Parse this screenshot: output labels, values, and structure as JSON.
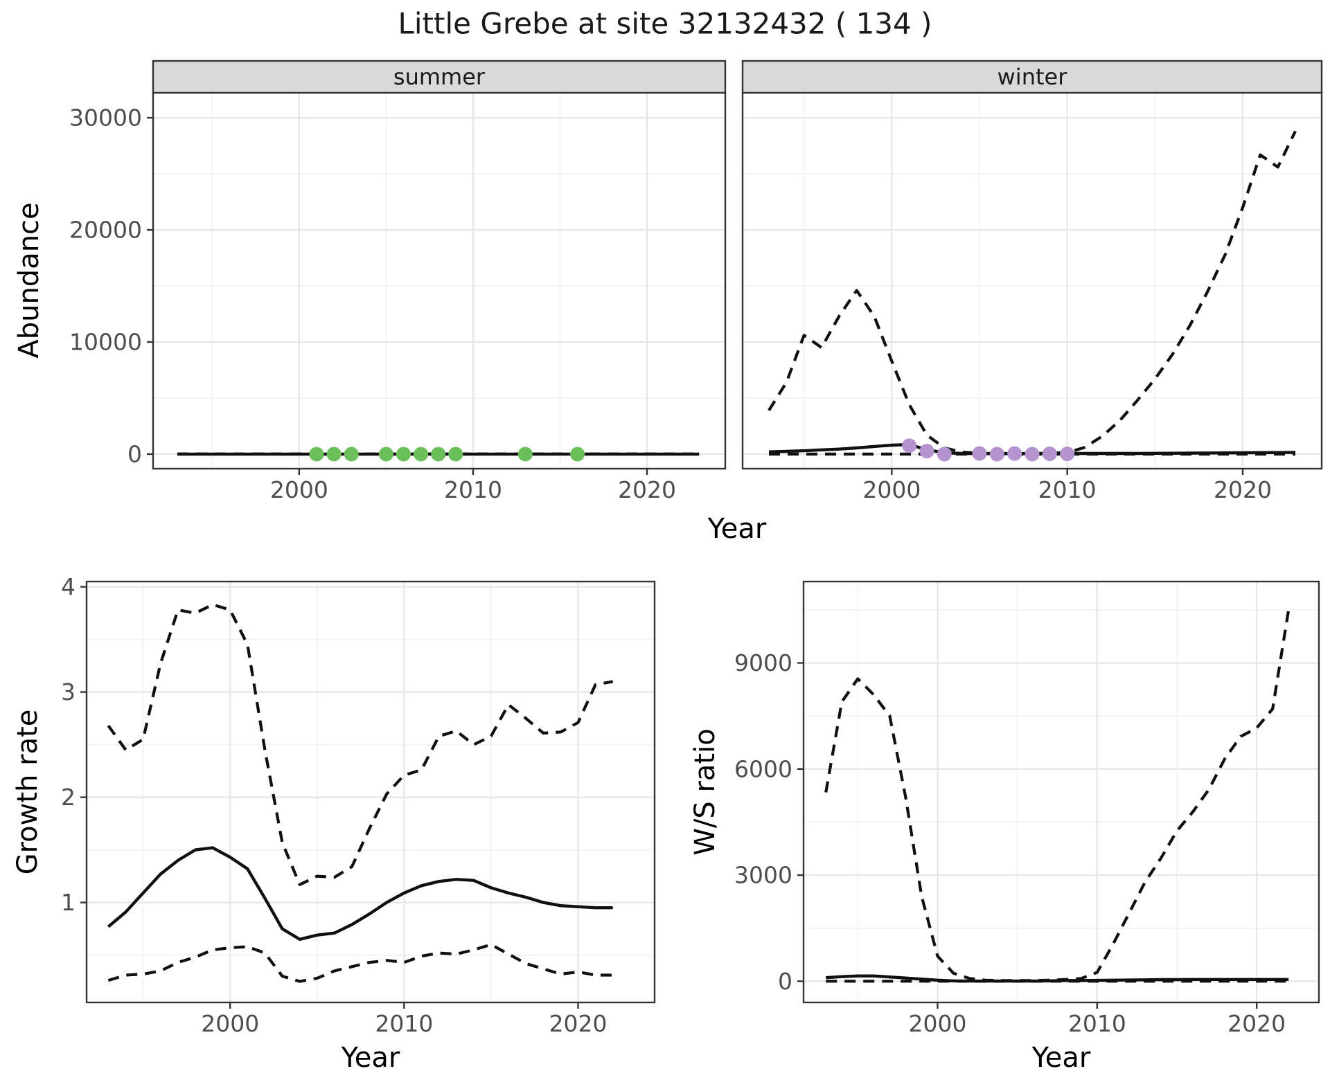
{
  "title": "Little Grebe at site 32132432 ( 134 )",
  "axis_titles": {
    "top_y": "Abundance",
    "top_x": "Year",
    "bottom_left_y": "Growth rate",
    "bottom_left_x": "Year",
    "bottom_right_y": "W/S ratio",
    "bottom_right_x": "Year"
  },
  "colors": {
    "summer_point": "#6abf5a",
    "winter_point": "#b493ce",
    "line": "#101010",
    "grid_major": "#e6e6e6",
    "grid_minor": "#f2f2f2",
    "panel_border": "#333333",
    "strip_fill": "#d9d9d9",
    "strip_text": "#1a1a1a",
    "tick_label": "#4d4d4d",
    "panel_bg": "#ffffff"
  },
  "chart_data": [
    {
      "id": "summer",
      "type": "line",
      "facet_label": "summer",
      "xlabel": "Year",
      "ylabel": "Abundance",
      "x": [
        1993,
        1994,
        1995,
        1996,
        1997,
        1998,
        1999,
        2000,
        2001,
        2002,
        2003,
        2004,
        2005,
        2006,
        2007,
        2008,
        2009,
        2010,
        2011,
        2012,
        2013,
        2014,
        2015,
        2016,
        2017,
        2018,
        2019,
        2020,
        2021,
        2022,
        2023
      ],
      "series": [
        {
          "name": "fit",
          "style": "solid",
          "values": [
            0,
            0,
            0,
            0,
            0,
            0,
            0,
            0,
            0,
            0,
            0,
            0,
            0,
            0,
            0,
            0,
            0,
            0,
            0,
            0,
            0,
            0,
            0,
            0,
            0,
            0,
            0,
            0,
            0,
            0,
            0
          ]
        },
        {
          "name": "lower_ci",
          "style": "dashed",
          "values": [
            0,
            0,
            0,
            0,
            0,
            0,
            0,
            0,
            0,
            0,
            0,
            0,
            0,
            0,
            0,
            0,
            0,
            0,
            0,
            0,
            0,
            0,
            0,
            0,
            0,
            0,
            0,
            0,
            0,
            0,
            0
          ]
        },
        {
          "name": "upper_ci",
          "style": "dashed",
          "values": [
            0,
            0,
            0,
            0,
            0,
            0,
            0,
            0,
            0,
            0,
            0,
            0,
            0,
            0,
            0,
            0,
            0,
            0,
            0,
            0,
            0,
            0,
            0,
            0,
            0,
            0,
            0,
            0,
            0,
            0,
            0
          ]
        }
      ],
      "points": {
        "color_key": "summer_point",
        "x": [
          2001,
          2002,
          2003,
          2005,
          2006,
          2007,
          2008,
          2009,
          2013,
          2016
        ],
        "y": [
          0,
          0,
          0,
          0,
          0,
          0,
          0,
          0,
          0,
          0
        ]
      },
      "x_major": {
        "years": [
          2000,
          2010,
          2020
        ],
        "labels": [
          "2000",
          "2010",
          "2020"
        ]
      },
      "x_minor": [
        1995,
        2005,
        2015
      ],
      "y_major": {
        "values": [
          0,
          10000,
          20000,
          30000
        ],
        "labels": [
          "0",
          "10000",
          "20000",
          "30000"
        ]
      },
      "y_minor": [
        5000,
        15000,
        25000
      ],
      "xlim_years": [
        1991.6,
        2024.5
      ],
      "ylim": [
        -1300,
        32230
      ]
    },
    {
      "id": "winter",
      "type": "line",
      "facet_label": "winter",
      "xlabel": "Year",
      "ylabel": "Abundance",
      "x": [
        1993,
        1994,
        1995,
        1996,
        1997,
        1998,
        1999,
        2000,
        2001,
        2002,
        2003,
        2004,
        2005,
        2006,
        2007,
        2008,
        2009,
        2010,
        2011,
        2012,
        2013,
        2014,
        2015,
        2016,
        2017,
        2018,
        2019,
        2020,
        2021,
        2022,
        2023
      ],
      "series": [
        {
          "name": "fit",
          "style": "solid",
          "values": [
            200,
            250,
            300,
            380,
            450,
            550,
            680,
            800,
            850,
            400,
            120,
            60,
            40,
            40,
            40,
            40,
            50,
            60,
            60,
            60,
            60,
            60,
            70,
            80,
            90,
            100,
            110,
            120,
            130,
            140,
            150
          ]
        },
        {
          "name": "lower_ci",
          "style": "dashed",
          "values": [
            0,
            0,
            0,
            0,
            0,
            0,
            0,
            0,
            0,
            0,
            0,
            0,
            0,
            0,
            0,
            0,
            0,
            0,
            0,
            0,
            0,
            0,
            0,
            0,
            0,
            0,
            0,
            0,
            0,
            0,
            0
          ]
        },
        {
          "name": "upper_ci",
          "style": "dashed",
          "values": [
            3900,
            6400,
            10600,
            9500,
            12300,
            14600,
            12300,
            8300,
            4400,
            1700,
            550,
            180,
            80,
            60,
            60,
            60,
            80,
            130,
            600,
            1600,
            3000,
            4800,
            6700,
            8900,
            11500,
            14500,
            17800,
            22000,
            26700,
            25600,
            28800
          ]
        }
      ],
      "points": {
        "color_key": "winter_point",
        "x": [
          2001,
          2002,
          2003,
          2005,
          2006,
          2007,
          2008,
          2009,
          2010
        ],
        "y": [
          750,
          270,
          0,
          60,
          0,
          50,
          0,
          30,
          20
        ]
      },
      "x_major": {
        "years": [
          2000,
          2010,
          2020
        ],
        "labels": [
          "2000",
          "2010",
          "2020"
        ]
      },
      "x_minor": [
        1995,
        2005,
        2015
      ],
      "y_major": {
        "values": [
          0,
          10000,
          20000,
          30000
        ],
        "labels": null
      },
      "y_minor": [
        5000,
        15000,
        25000
      ],
      "xlim_years": [
        1991.5,
        2024.5
      ],
      "ylim": [
        -1300,
        32230
      ]
    },
    {
      "id": "growth",
      "type": "line",
      "facet_label": null,
      "xlabel": "Year",
      "ylabel": "Growth rate",
      "x": [
        1993,
        1994,
        1995,
        1996,
        1997,
        1998,
        1999,
        2000,
        2001,
        2002,
        2003,
        2004,
        2005,
        2006,
        2007,
        2008,
        2009,
        2010,
        2011,
        2012,
        2013,
        2014,
        2015,
        2016,
        2017,
        2018,
        2019,
        2020,
        2021,
        2022
      ],
      "series": [
        {
          "name": "fit",
          "style": "solid",
          "values": [
            0.77,
            0.91,
            1.09,
            1.27,
            1.4,
            1.5,
            1.52,
            1.43,
            1.32,
            1.04,
            0.75,
            0.65,
            0.69,
            0.71,
            0.79,
            0.89,
            1.0,
            1.09,
            1.16,
            1.2,
            1.22,
            1.21,
            1.14,
            1.09,
            1.05,
            1.0,
            0.97,
            0.96,
            0.95,
            0.95
          ]
        },
        {
          "name": "lower_ci",
          "style": "dashed",
          "values": [
            0.26,
            0.31,
            0.32,
            0.35,
            0.43,
            0.48,
            0.55,
            0.57,
            0.58,
            0.52,
            0.3,
            0.25,
            0.28,
            0.35,
            0.39,
            0.43,
            0.45,
            0.43,
            0.49,
            0.52,
            0.51,
            0.55,
            0.6,
            0.51,
            0.42,
            0.37,
            0.32,
            0.34,
            0.31,
            0.31
          ]
        },
        {
          "name": "upper_ci",
          "style": "dashed",
          "values": [
            2.68,
            2.45,
            2.55,
            3.27,
            3.78,
            3.75,
            3.83,
            3.78,
            3.45,
            2.45,
            1.57,
            1.17,
            1.25,
            1.24,
            1.34,
            1.7,
            2.03,
            2.21,
            2.26,
            2.58,
            2.63,
            2.5,
            2.58,
            2.88,
            2.75,
            2.61,
            2.62,
            2.71,
            3.07,
            3.1
          ]
        }
      ],
      "points": null,
      "x_major": {
        "years": [
          2000,
          2010,
          2020
        ],
        "labels": [
          "2000",
          "2010",
          "2020"
        ]
      },
      "x_minor": [
        1995,
        2005,
        2015
      ],
      "y_major": {
        "values": [
          1,
          2,
          3,
          4
        ],
        "labels": [
          "1",
          "2",
          "3",
          "4"
        ]
      },
      "y_minor": [
        0.5,
        1.5,
        2.5,
        3.5
      ],
      "xlim_years": [
        1991.75,
        2024.4
      ],
      "ylim": [
        0.05,
        4.05
      ]
    },
    {
      "id": "ws",
      "type": "line",
      "facet_label": null,
      "xlabel": "Year",
      "ylabel": "W/S ratio",
      "x": [
        1993,
        1994,
        1995,
        1996,
        1997,
        1998,
        1999,
        2000,
        2001,
        2002,
        2003,
        2004,
        2005,
        2006,
        2007,
        2008,
        2009,
        2010,
        2011,
        2012,
        2013,
        2014,
        2015,
        2016,
        2017,
        2018,
        2019,
        2020,
        2021,
        2022
      ],
      "series": [
        {
          "name": "fit",
          "style": "solid",
          "values": [
            100,
            130,
            150,
            150,
            120,
            90,
            60,
            30,
            10,
            5,
            5,
            5,
            5,
            5,
            10,
            20,
            20,
            25,
            30,
            35,
            40,
            45,
            45,
            50,
            50,
            50,
            50,
            50,
            50,
            50
          ]
        },
        {
          "name": "lower_ci",
          "style": "dashed",
          "values": [
            0,
            0,
            0,
            0,
            0,
            0,
            0,
            0,
            0,
            0,
            0,
            0,
            0,
            0,
            0,
            0,
            0,
            0,
            0,
            0,
            0,
            0,
            0,
            0,
            0,
            0,
            0,
            0,
            0,
            0
          ]
        },
        {
          "name": "upper_ci",
          "style": "dashed",
          "values": [
            5340,
            7900,
            8550,
            8100,
            7500,
            5200,
            2400,
            710,
            225,
            80,
            30,
            20,
            20,
            20,
            30,
            50,
            80,
            250,
            1050,
            1920,
            2800,
            3480,
            4250,
            4790,
            5420,
            6290,
            6920,
            7160,
            7700,
            10500
          ]
        }
      ],
      "points": null,
      "x_major": {
        "years": [
          2000,
          2010,
          2020
        ],
        "labels": [
          "2000",
          "2010",
          "2020"
        ]
      },
      "x_minor": [
        1995,
        2005,
        2015
      ],
      "y_major": {
        "values": [
          0,
          3000,
          6000,
          9000
        ],
        "labels": [
          "0",
          "3000",
          "6000",
          "9000"
        ]
      },
      "y_minor": [
        1500,
        4500,
        7500,
        10500
      ],
      "xlim_years": [
        1991.6,
        2023.9
      ],
      "ylim": [
        -600,
        11300
      ]
    }
  ]
}
